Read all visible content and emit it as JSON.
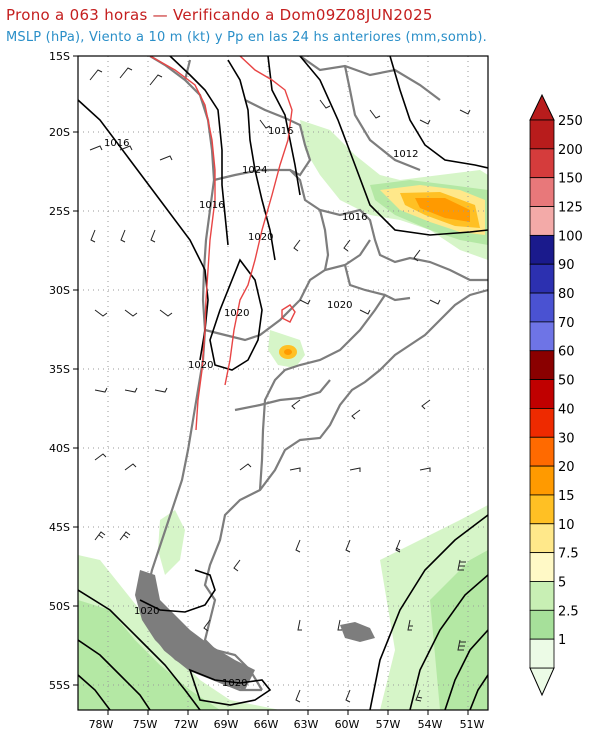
{
  "title": "Prono a 063 horas — Verificando a Dom09Z08JUN2025",
  "subtitle": "MSLP (hPa), Viento a 10 m (kt) y Pp en las 24 hs anteriores (mm,somb).",
  "map": {
    "lat_labels": [
      "15S",
      "20S",
      "25S",
      "30S",
      "35S",
      "40S",
      "45S",
      "50S",
      "55S"
    ],
    "lon_labels": [
      "78W",
      "75W",
      "72W",
      "69W",
      "66W",
      "63W",
      "60W",
      "57W",
      "54W",
      "51W"
    ],
    "isobar_labels": [
      {
        "text": "1016"
      },
      {
        "text": "1016"
      },
      {
        "text": "1016"
      },
      {
        "text": "1016"
      },
      {
        "text": "1012"
      },
      {
        "text": "1024"
      },
      {
        "text": "1020"
      },
      {
        "text": "1020"
      },
      {
        "text": "1020"
      },
      {
        "text": "1020"
      },
      {
        "text": "1020"
      },
      {
        "text": "1020"
      }
    ]
  },
  "colorbar": {
    "labels": [
      "250",
      "200",
      "150",
      "125",
      "100",
      "90",
      "80",
      "70",
      "60",
      "50",
      "40",
      "30",
      "20",
      "15",
      "10",
      "7.5",
      "5",
      "2.5",
      "1"
    ],
    "colors": [
      "#b81c1c",
      "#d53c3c",
      "#e8787a",
      "#f3aaa8",
      "#1a1a8c",
      "#2c30b0",
      "#4a52d2",
      "#6e74e6",
      "#8a0000",
      "#c00000",
      "#ee2a00",
      "#ff6a00",
      "#ff9a00",
      "#ffc024",
      "#ffe88a",
      "#fff9c6",
      "#c8efb4",
      "#a6e09a",
      "#ecfbe6"
    ]
  }
}
